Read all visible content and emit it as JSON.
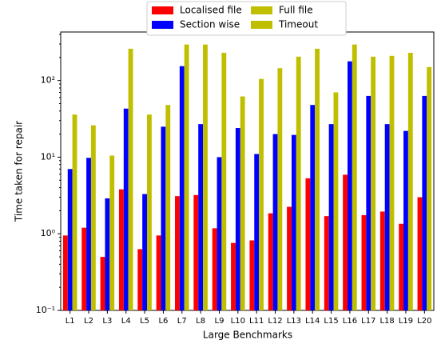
{
  "chart_data": {
    "type": "bar",
    "x_label": "Large Benchmarks",
    "y_label": "Time taken for repair",
    "categories": [
      "L1",
      "L2",
      "L3",
      "L4",
      "L5",
      "L6",
      "L7",
      "L8",
      "L9",
      "L10",
      "L11",
      "L12",
      "L13",
      "L14",
      "L15",
      "L16",
      "L17",
      "L18",
      "L19",
      "L20"
    ],
    "series": [
      {
        "name": "Localised file",
        "color": "#ff0000",
        "values": [
          0.95,
          1.2,
          0.5,
          3.8,
          0.63,
          0.95,
          3.1,
          3.2,
          1.18,
          0.76,
          0.82,
          1.85,
          2.25,
          5.3,
          1.7,
          5.9,
          1.75,
          1.95,
          1.35,
          3.0
        ]
      },
      {
        "name": "Section wise",
        "color": "#0000ff",
        "values": [
          7,
          9.8,
          2.9,
          43,
          3.3,
          25,
          154,
          27,
          10,
          24,
          11,
          20,
          19.5,
          48,
          27,
          178,
          63,
          27,
          22,
          63
        ]
      },
      {
        "name": "Full file",
        "color": "#bfbf00",
        "values": [
          36,
          26,
          10.5,
          260,
          36,
          48,
          295,
          295,
          230,
          62,
          105,
          145,
          205,
          260,
          70,
          295,
          205,
          210,
          230,
          150
        ]
      },
      {
        "name": "Timeout",
        "color": "#bfbf00",
        "values": [
          null,
          null,
          null,
          null,
          null,
          null,
          null,
          null,
          null,
          null,
          null,
          null,
          null,
          null,
          null,
          null,
          null,
          null,
          null,
          null
        ]
      }
    ],
    "log_scale": true,
    "ylim": [
      0.1,
      430
    ],
    "yticks": [
      {
        "value": 0.1,
        "label": "10⁻¹"
      },
      {
        "value": 1,
        "label": "10⁰"
      },
      {
        "value": 10,
        "label": "10¹"
      },
      {
        "value": 100,
        "label": "10²"
      }
    ],
    "legend": "upper center"
  }
}
